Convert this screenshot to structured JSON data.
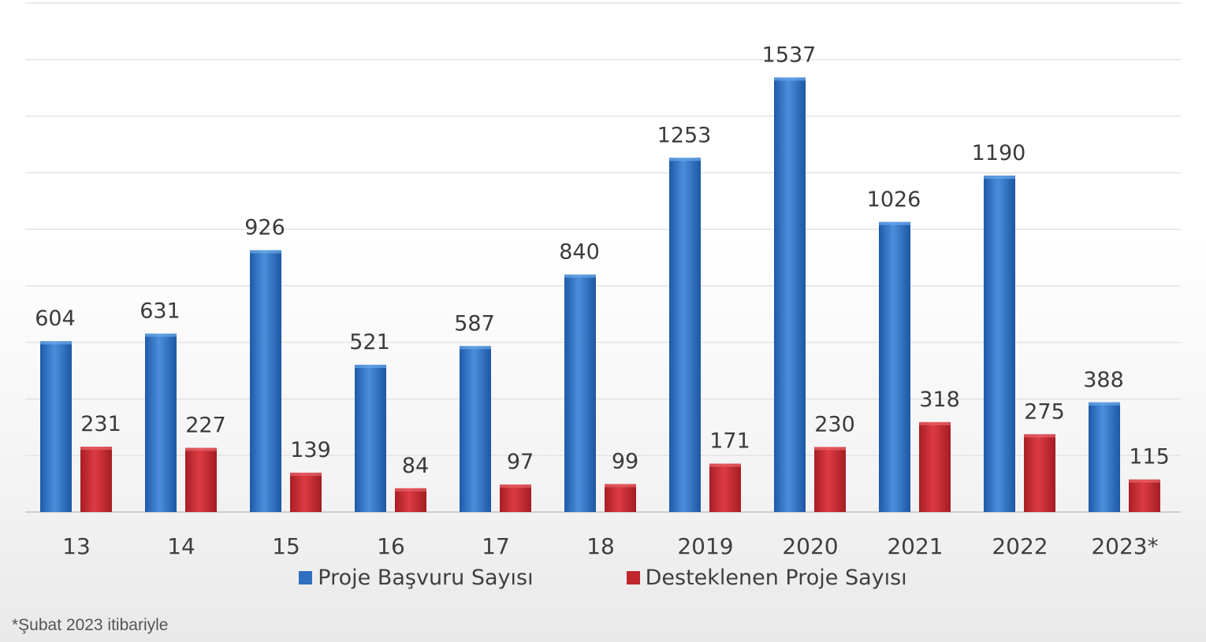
{
  "chart_data": {
    "type": "bar",
    "categories": [
      "13",
      "14",
      "15",
      "16",
      "17",
      "18",
      "2019",
      "2020",
      "2021",
      "2022",
      "2023*"
    ],
    "series": [
      {
        "name": "Proje Başvuru Sayısı",
        "color": "#2f6fbf",
        "values": [
          604,
          631,
          926,
          521,
          587,
          840,
          1253,
          1537,
          1026,
          1190,
          388
        ]
      },
      {
        "name": "Desteklenen Proje Sayısı",
        "color": "#c0272d",
        "values": [
          231,
          227,
          139,
          84,
          97,
          99,
          171,
          230,
          318,
          275,
          115
        ]
      }
    ],
    "title": "",
    "xlabel": "",
    "ylabel": "",
    "ylim": [
      0,
      1800
    ],
    "grid": true,
    "legend_position": "bottom",
    "data_labels": true
  },
  "footnote": "*Şubat 2023 itibariyle"
}
